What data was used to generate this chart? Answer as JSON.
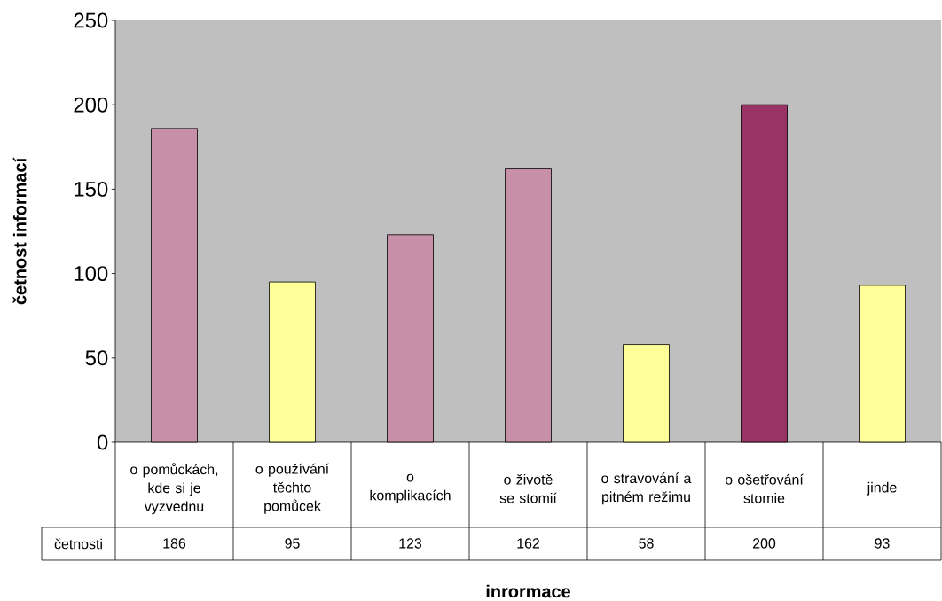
{
  "chart_data": {
    "type": "bar",
    "xlabel": "inrormace",
    "ylabel": "četnost informací",
    "categories": [
      "o pomůckách, kde si je vyzvednu",
      "o používání těchto pomůcek",
      "o komplikacích",
      "o životě se stomií",
      "o stravování a pitném režimu",
      "o ošetřování stomie",
      "jinde"
    ],
    "series": [
      {
        "name": "četnosti",
        "values": [
          186,
          95,
          123,
          162,
          58,
          200,
          93
        ],
        "colors": [
          "#c890a8",
          "#ffff99",
          "#c890a8",
          "#c890a8",
          "#ffff99",
          "#993366",
          "#ffff99"
        ]
      }
    ],
    "ylim": [
      0,
      250
    ],
    "yticks": [
      0,
      50,
      100,
      150,
      200,
      250
    ],
    "data_labels": true,
    "legend": "bottom left",
    "grid": false
  }
}
